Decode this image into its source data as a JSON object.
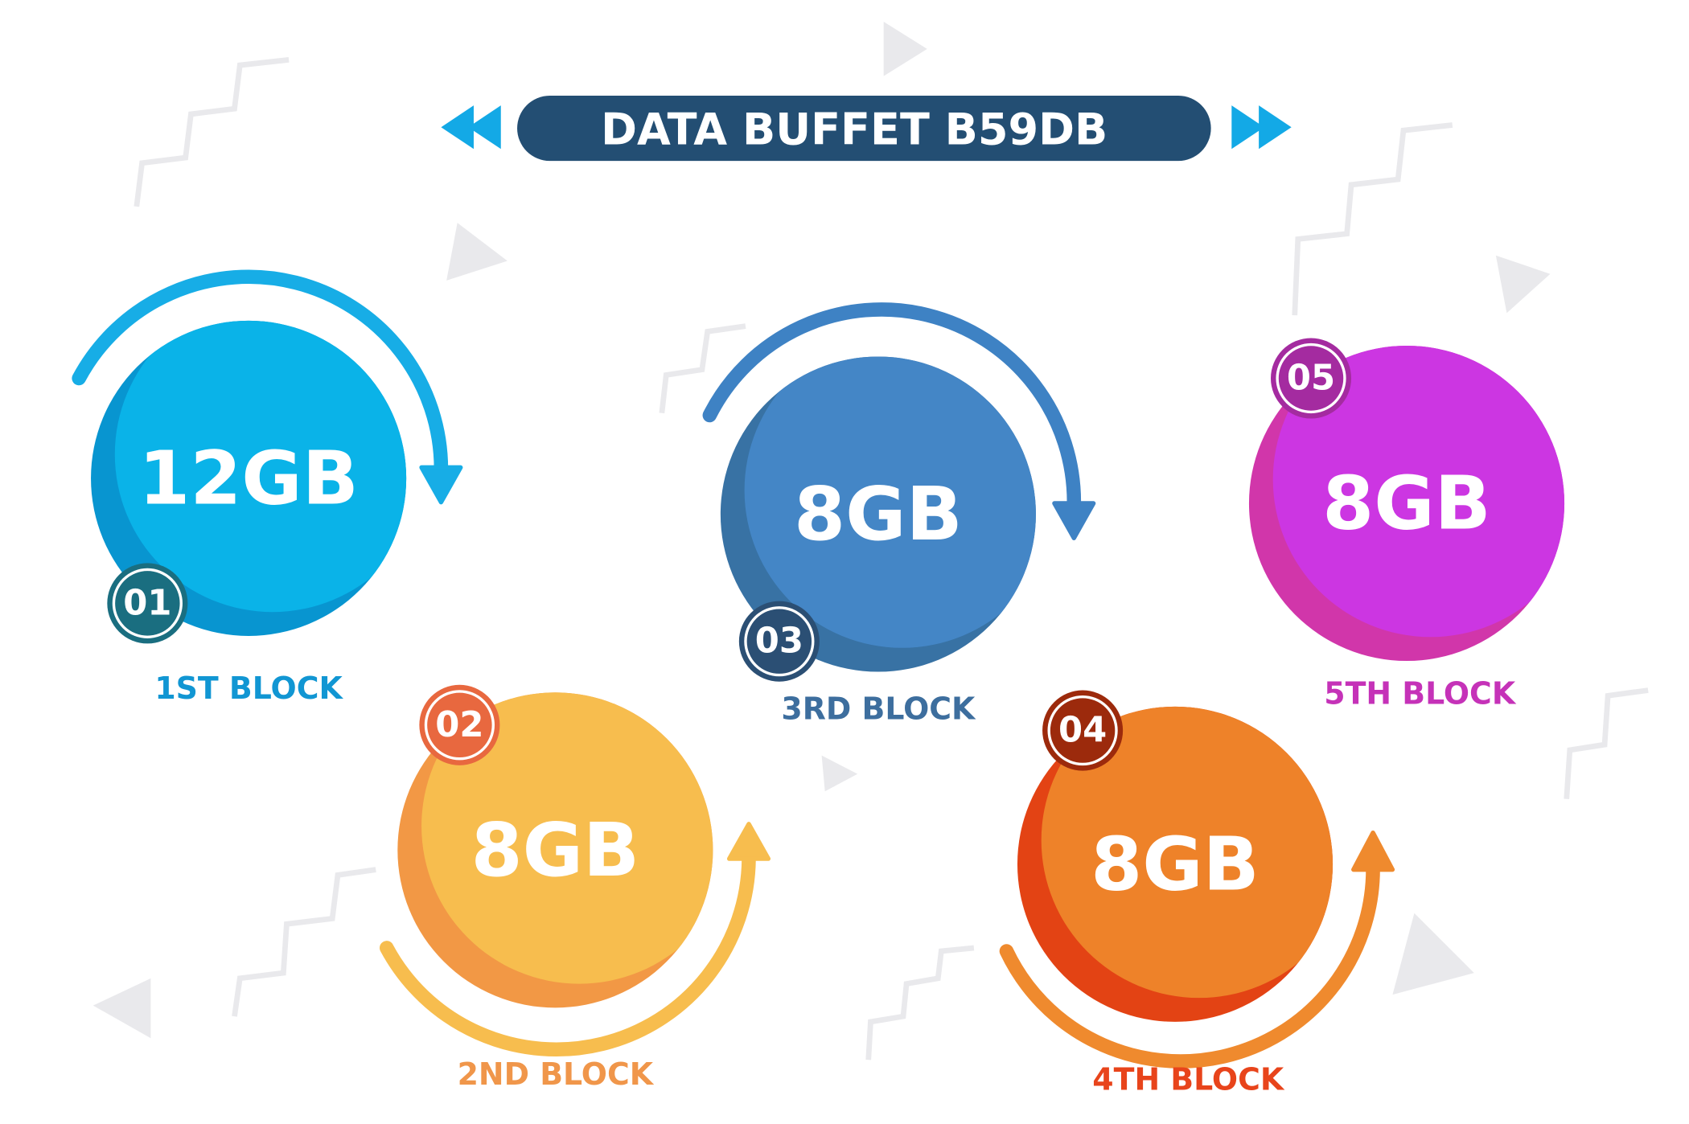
{
  "title": "DATA BUFFET B59DB",
  "blocks": [
    {
      "number": "01",
      "amount": "12GB",
      "label": "1ST BLOCK"
    },
    {
      "number": "02",
      "amount": "8GB",
      "label": "2ND BLOCK"
    },
    {
      "number": "03",
      "amount": "8GB",
      "label": "3RD BLOCK"
    },
    {
      "number": "04",
      "amount": "8GB",
      "label": "4TH BLOCK"
    },
    {
      "number": "05",
      "amount": "8GB",
      "label": "5TH BLOCK"
    }
  ]
}
